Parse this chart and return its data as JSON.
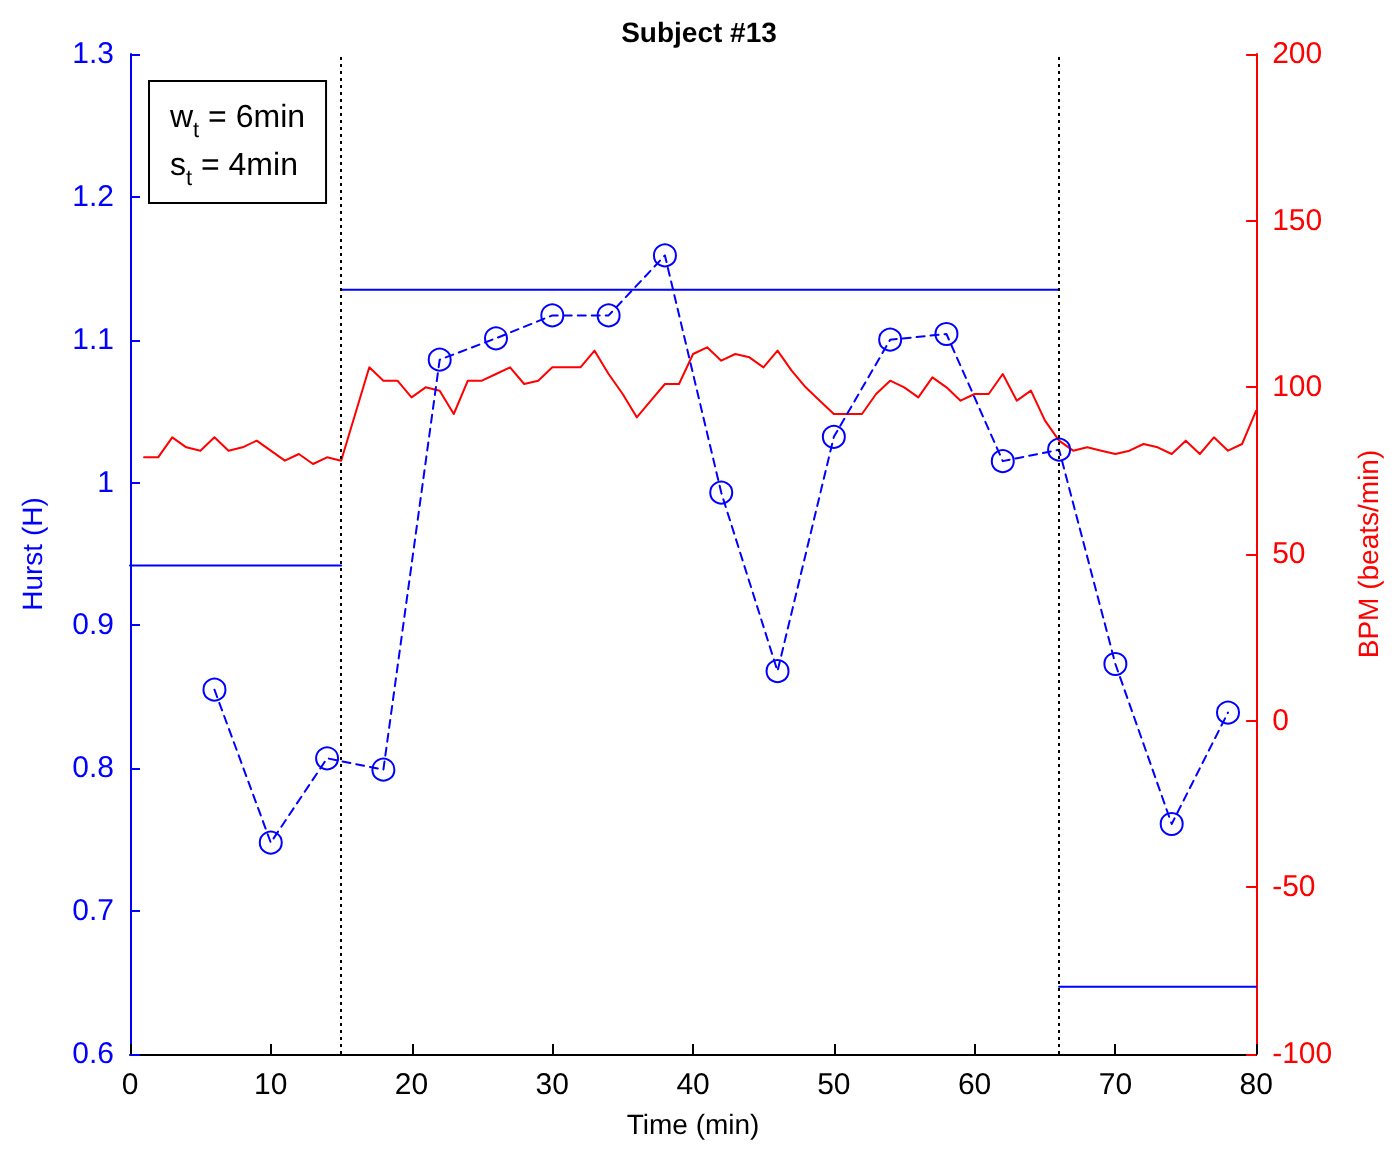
{
  "chart_data": {
    "type": "line",
    "title": "Subject #13",
    "xlabel": "Time (min)",
    "ylabel": "Hurst (H)",
    "y2label": "BPM (beats/min)",
    "xlim": [
      0,
      80
    ],
    "xticks": [
      0,
      10,
      20,
      30,
      40,
      50,
      60,
      70,
      80
    ],
    "ylim": [
      0.6,
      1.3
    ],
    "yticks": [
      0.6,
      0.7,
      0.8,
      0.9,
      1,
      1.1,
      1.2,
      1.3
    ],
    "y2lim": [
      -100,
      200
    ],
    "y2ticks": [
      -100,
      -50,
      0,
      50,
      100,
      150,
      200
    ],
    "grid": false,
    "annotations": [
      "w$_{t}$ = 6min\ns$_{t}$ = 4min"
    ],
    "ref_lines": [
      {
        "axis": "x",
        "value": 15,
        "color": "#000000",
        "line_style": "dotted"
      },
      {
        "axis": "x",
        "value": 66,
        "color": "#000000",
        "line_style": "dotted"
      }
    ],
    "series": [
      {
        "color": "#0000ff",
        "marker": "none",
        "line_style": "solid",
        "x": [
          0,
          15
        ],
        "values": [
          0.942,
          0.942
        ]
      },
      {
        "color": "#0000ff",
        "marker": "none",
        "line_style": "solid",
        "x": [
          15,
          66
        ],
        "values": [
          1.135,
          1.135
        ]
      },
      {
        "color": "#0000ff",
        "marker": "none",
        "line_style": "solid",
        "x": [
          66,
          80
        ],
        "values": [
          0.647,
          0.647
        ]
      },
      {
        "color": "#0000ff",
        "marker": "circle",
        "line_style": "dashed",
        "x": [
          6,
          10,
          14,
          18,
          22,
          26,
          30,
          34,
          38,
          42,
          46,
          50,
          54,
          58,
          62,
          66,
          70,
          74,
          78
        ],
        "values": [
          0.855,
          0.748,
          0.807,
          0.799,
          1.086,
          1.101,
          1.117,
          1.117,
          1.159,
          0.993,
          0.868,
          1.032,
          1.1,
          1.104,
          1.015,
          1.023,
          0.873,
          0.761,
          0.839
        ]
      },
      {
        "color": "#ff0000",
        "marker": "none",
        "line_style": "solid",
        "axis": "y2",
        "x": [
          1,
          2,
          3,
          4,
          5,
          6,
          7,
          8,
          9,
          10,
          11,
          12,
          13,
          14,
          15,
          17,
          18,
          19,
          20,
          21,
          22,
          23,
          24,
          25,
          26,
          27,
          28,
          29,
          30,
          31,
          32,
          33,
          34,
          35,
          36,
          37,
          38,
          39,
          40,
          41,
          42,
          43,
          44,
          45,
          46,
          47,
          48,
          49,
          50,
          51,
          52,
          53,
          54,
          55,
          56,
          57,
          58,
          59,
          60,
          61,
          62,
          63,
          64,
          65,
          66,
          67,
          68,
          69,
          70,
          71,
          72,
          73,
          74,
          75,
          76,
          77,
          78,
          79,
          80
        ],
        "values": [
          79,
          79,
          85,
          82,
          81,
          85,
          81,
          82,
          84,
          81,
          78,
          80,
          77,
          79,
          78,
          106,
          102,
          102,
          97,
          100,
          99,
          92,
          102,
          102,
          104,
          106,
          101,
          102,
          106,
          106,
          106,
          111,
          104,
          98,
          91,
          96,
          101,
          101,
          110,
          112,
          108,
          110,
          109,
          106,
          111,
          105,
          100,
          96,
          92,
          92,
          92,
          98,
          102,
          100,
          97,
          103,
          100,
          96,
          98,
          98,
          104,
          96,
          99,
          90,
          84,
          81,
          82,
          81,
          80,
          81,
          83,
          82,
          80,
          84,
          80,
          85,
          81,
          83,
          93
        ]
      }
    ]
  }
}
